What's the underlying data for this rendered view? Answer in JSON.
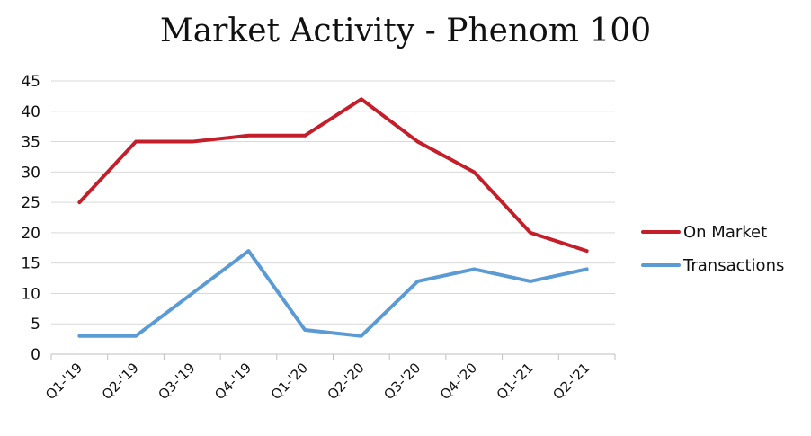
{
  "chart_data": {
    "type": "line",
    "title": "Market Activity - Phenom 100",
    "xlabel": "",
    "ylabel": "",
    "categories": [
      "Q1-'19",
      "Q2-'19",
      "Q3-'19",
      "Q4-'19",
      "Q1-'20",
      "Q2-'20",
      "Q3-'20",
      "Q4-'20",
      "Q1-'21",
      "Q2-'21"
    ],
    "ylim": [
      0,
      45
    ],
    "yticks": [
      0,
      5,
      10,
      15,
      20,
      25,
      30,
      35,
      40,
      45
    ],
    "grid": true,
    "legend_position": "right",
    "series": [
      {
        "name": "On Market",
        "color": "#c41e2a",
        "values": [
          25,
          35,
          35,
          36,
          36,
          42,
          35,
          30,
          20,
          17
        ]
      },
      {
        "name": "Transactions",
        "color": "#5b9bd5",
        "values": [
          3,
          3,
          10,
          17,
          4,
          3,
          12,
          14,
          12,
          14
        ]
      }
    ]
  }
}
